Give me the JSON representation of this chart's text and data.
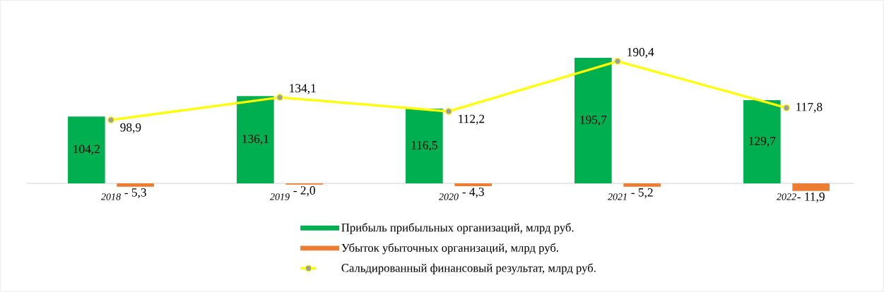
{
  "chart_data": {
    "type": "bar",
    "categories": [
      "2018",
      "2019",
      "2020",
      "2021",
      "2022"
    ],
    "series": [
      {
        "name": "Прибыль прибыльных организаций, млрд руб.",
        "color": "#00b050",
        "values": [
          104.2,
          136.1,
          116.5,
          195.7,
          129.7
        ],
        "value_labels": [
          "104,2",
          "136,1",
          "116,5",
          "195,7",
          "129,7"
        ]
      },
      {
        "name": "Убыток убыточных организаций, млрд руб.",
        "color": "#ed7d31",
        "values": [
          -5.3,
          -2.0,
          -4.3,
          -5.2,
          -11.9
        ],
        "value_labels": [
          "- 5,3",
          "- 2,0",
          "- 4,3",
          "- 5,2",
          "- 11,9"
        ]
      },
      {
        "name": "Сальдированный финансовый результат, млрд руб.",
        "type": "line",
        "color": "#ffff00",
        "values": [
          98.9,
          134.1,
          112.2,
          190.4,
          117.8
        ],
        "value_labels": [
          "98,9",
          "134,1",
          "112,2",
          "190,4",
          "117,8"
        ]
      }
    ],
    "marker": "circle",
    "legend": "bottom",
    "grid": false
  }
}
